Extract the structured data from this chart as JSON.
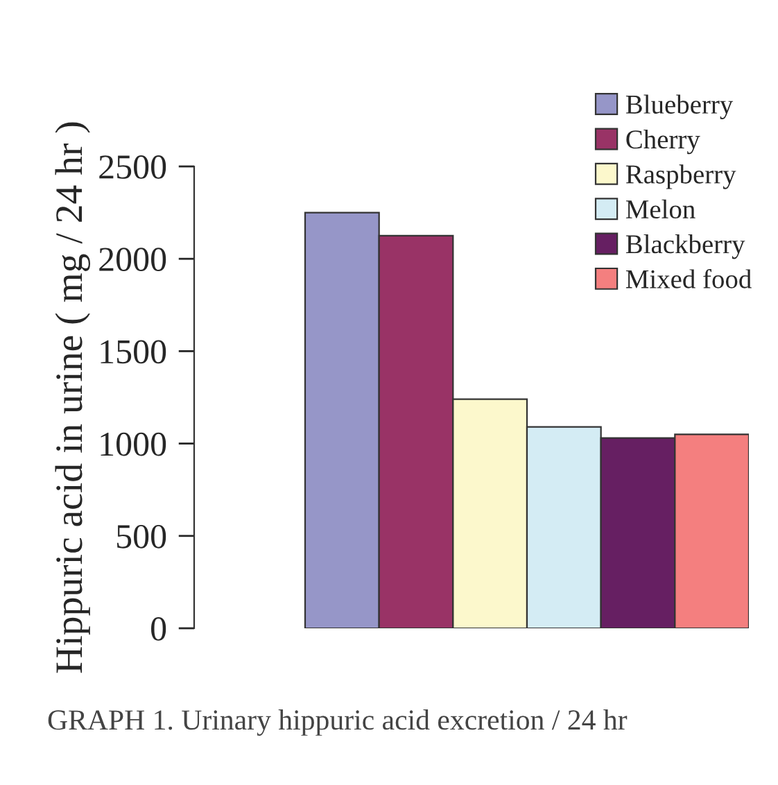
{
  "chart_data": {
    "type": "bar",
    "ylabel": "Hippuric acid in urine ( mg / 24 hr )",
    "categories": [
      null
    ],
    "series": [
      {
        "name": "Blueberry",
        "color": "#9696c8",
        "values": [
          2250
        ]
      },
      {
        "name": "Cherry",
        "color": "#993366",
        "values": [
          2125
        ]
      },
      {
        "name": "Raspberry",
        "color": "#fcf8cc",
        "values": [
          1240
        ]
      },
      {
        "name": "Melon",
        "color": "#d4ecf4",
        "values": [
          1090
        ]
      },
      {
        "name": "Blackberry",
        "color": "#661f62",
        "values": [
          1030
        ]
      },
      {
        "name": "Mixed food",
        "color": "#f47f7f",
        "values": [
          1050
        ]
      }
    ],
    "ylim": [
      0,
      2500
    ],
    "yticks": [
      0,
      500,
      1000,
      1500,
      2000,
      2500
    ],
    "grid": false,
    "legend": "top right",
    "annotations": [
      "GRAPH 1. Urinary hippuric acid excretion / 24 hr"
    ]
  }
}
